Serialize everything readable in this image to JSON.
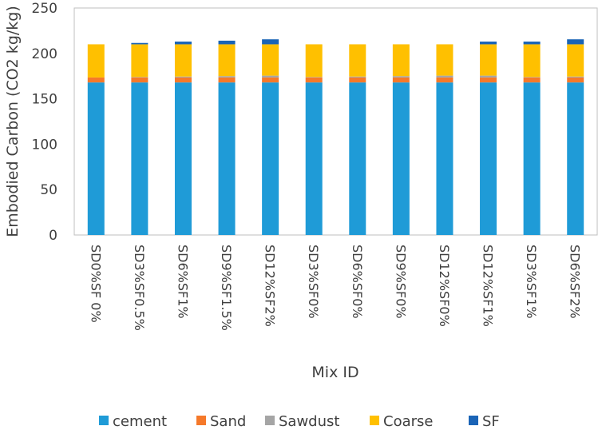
{
  "chart_data": {
    "type": "bar",
    "stacked": true,
    "title": "",
    "xlabel": "Mix ID",
    "ylabel": "Embodied Carbon (CO2 kg/kg)",
    "ylim": [
      0,
      250
    ],
    "yticks": [
      0,
      50,
      100,
      150,
      200,
      250
    ],
    "grid": false,
    "legend": "bottom",
    "categories": [
      "SD0%SF 0%",
      "SD3%SF0.5%",
      "SD6%SF1%",
      "SD9%SF1.5%",
      "SD12%SF2%",
      "SD3%SF0%",
      "SD6%SF0%",
      "SD9%SF0%",
      "SD12%SF0%",
      "SD12%SF1%",
      "SD3%SF1%",
      "SD6%SF2%"
    ],
    "series": [
      {
        "name": "cement",
        "color": "#1f9bd7",
        "values": [
          168,
          168,
          168,
          168,
          168,
          168,
          168,
          168,
          168,
          168,
          168,
          168
        ]
      },
      {
        "name": "Sand",
        "color": "#f5792a",
        "values": [
          5.5,
          5.5,
          5.5,
          5.5,
          5.5,
          5.5,
          5.5,
          5.5,
          5.5,
          5.5,
          5.5,
          5.5
        ]
      },
      {
        "name": "Sawdust",
        "color": "#a5a5a5",
        "values": [
          0,
          0.5,
          1,
          1.5,
          2,
          0.5,
          1,
          1.5,
          2,
          2,
          0.5,
          1
        ]
      },
      {
        "name": "Coarse",
        "color": "#ffc000",
        "values": [
          36.5,
          36,
          35.5,
          35,
          34.5,
          36,
          35.5,
          35,
          34.5,
          34.5,
          36,
          35.5
        ]
      },
      {
        "name": "SF",
        "color": "#1a64b6",
        "values": [
          0,
          1.5,
          3,
          4,
          5.5,
          0,
          0,
          0,
          0,
          3,
          3,
          5.5
        ]
      }
    ]
  }
}
